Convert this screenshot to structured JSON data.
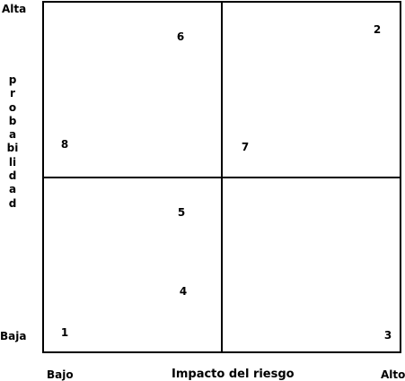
{
  "axes": {
    "y_high": "Alta",
    "y_low": "Baja",
    "y_title": "probabilidad",
    "x_low": "Bajo",
    "x_title": "Impacto del riesgo",
    "x_high": "Alto"
  },
  "risks": [
    "1",
    "2",
    "3",
    "4",
    "5",
    "6",
    "7",
    "8"
  ]
}
